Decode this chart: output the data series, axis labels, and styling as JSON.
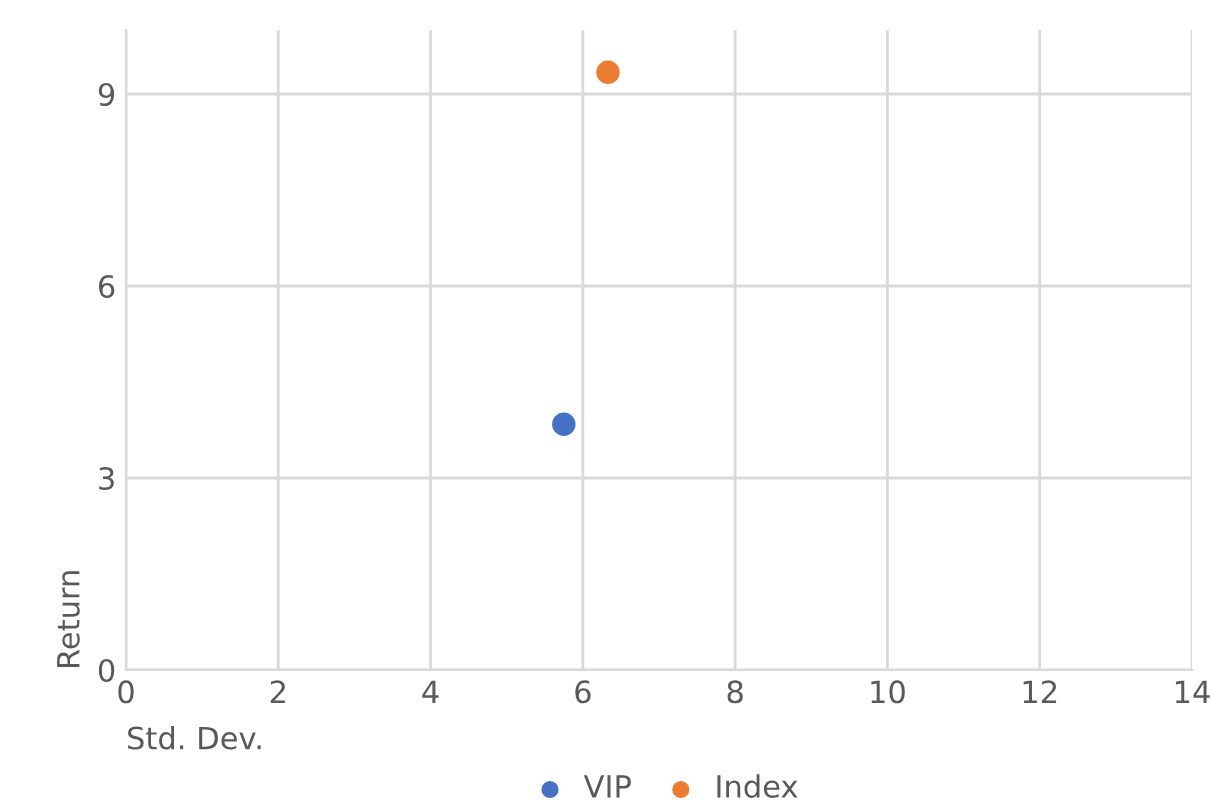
{
  "chart_data": {
    "type": "scatter",
    "xlabel": "Std. Dev.",
    "ylabel": "Return",
    "series": [
      {
        "name": "VIP",
        "color": "#4472c4",
        "x": [
          5.75
        ],
        "values": [
          3.84
        ]
      },
      {
        "name": "Index",
        "color": "#ed7d31",
        "x": [
          6.33
        ],
        "values": [
          9.34
        ]
      }
    ],
    "xlim": [
      0,
      14
    ],
    "xticks": [
      0,
      2,
      4,
      6,
      8,
      10,
      12,
      14
    ],
    "ylim": [
      0,
      10
    ],
    "yticks": [
      0,
      3,
      6,
      9
    ],
    "grid": true,
    "legend": "bottom",
    "marker": "circle"
  }
}
